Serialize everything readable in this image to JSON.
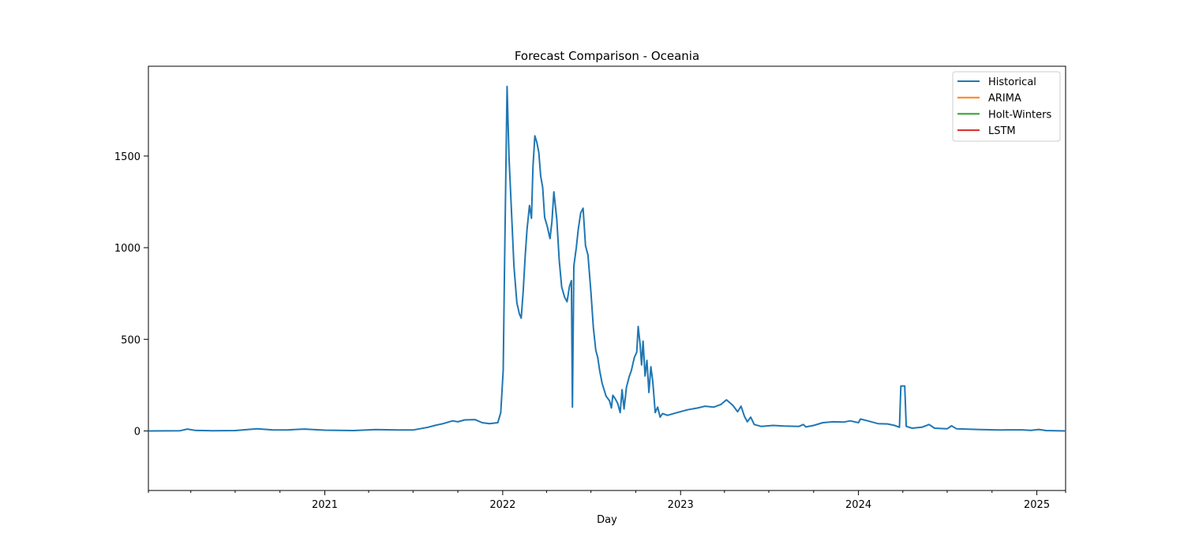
{
  "chart_data": {
    "type": "line",
    "title": "Forecast Comparison - Oceania",
    "xlabel": "Day",
    "ylabel": "",
    "xlim": [
      "2020-01-05",
      "2025-03-01"
    ],
    "ylim": [
      -325,
      1990
    ],
    "x_ticks": [
      {
        "date": "2021-01-01",
        "label": "2021"
      },
      {
        "date": "2022-01-01",
        "label": "2022"
      },
      {
        "date": "2023-01-01",
        "label": "2023"
      },
      {
        "date": "2024-01-01",
        "label": "2024"
      },
      {
        "date": "2025-01-01",
        "label": "2025"
      }
    ],
    "x_minor_ticks": [
      "2020-04-01",
      "2020-07-01",
      "2020-10-01",
      "2021-04-01",
      "2021-07-01",
      "2021-10-01",
      "2022-04-01",
      "2022-07-01",
      "2022-10-01",
      "2023-04-01",
      "2023-07-01",
      "2023-10-01",
      "2024-04-01",
      "2024-07-01",
      "2024-10-01"
    ],
    "y_ticks": [
      0,
      500,
      1000,
      1500
    ],
    "grid": false,
    "legend_position": "upper-right",
    "series": [
      {
        "name": "Historical",
        "color": "#1f77b4",
        "points": [
          [
            "2020-01-05",
            0
          ],
          [
            "2020-03-10",
            1
          ],
          [
            "2020-03-25",
            10
          ],
          [
            "2020-04-10",
            3
          ],
          [
            "2020-05-15",
            1
          ],
          [
            "2020-07-01",
            2
          ],
          [
            "2020-08-15",
            12
          ],
          [
            "2020-09-15",
            6
          ],
          [
            "2020-10-15",
            5
          ],
          [
            "2020-11-20",
            10
          ],
          [
            "2021-01-01",
            4
          ],
          [
            "2021-03-01",
            2
          ],
          [
            "2021-04-15",
            7
          ],
          [
            "2021-06-01",
            5
          ],
          [
            "2021-07-01",
            5
          ],
          [
            "2021-08-01",
            20
          ],
          [
            "2021-08-15",
            30
          ],
          [
            "2021-09-01",
            40
          ],
          [
            "2021-09-20",
            55
          ],
          [
            "2021-10-01",
            50
          ],
          [
            "2021-10-15",
            60
          ],
          [
            "2021-11-05",
            62
          ],
          [
            "2021-11-20",
            45
          ],
          [
            "2021-12-05",
            40
          ],
          [
            "2021-12-22",
            45
          ],
          [
            "2021-12-28",
            100
          ],
          [
            "2022-01-02",
            330
          ],
          [
            "2022-01-05",
            930
          ],
          [
            "2022-01-10",
            1880
          ],
          [
            "2022-01-14",
            1490
          ],
          [
            "2022-01-20",
            1140
          ],
          [
            "2022-01-24",
            900
          ],
          [
            "2022-01-30",
            700
          ],
          [
            "2022-02-04",
            640
          ],
          [
            "2022-02-08",
            615
          ],
          [
            "2022-02-12",
            760
          ],
          [
            "2022-02-16",
            950
          ],
          [
            "2022-02-20",
            1100
          ],
          [
            "2022-02-25",
            1230
          ],
          [
            "2022-03-01",
            1160
          ],
          [
            "2022-03-04",
            1440
          ],
          [
            "2022-03-08",
            1610
          ],
          [
            "2022-03-12",
            1575
          ],
          [
            "2022-03-16",
            1520
          ],
          [
            "2022-03-20",
            1390
          ],
          [
            "2022-03-24",
            1330
          ],
          [
            "2022-03-28",
            1165
          ],
          [
            "2022-04-02",
            1120
          ],
          [
            "2022-04-08",
            1050
          ],
          [
            "2022-04-12",
            1140
          ],
          [
            "2022-04-16",
            1305
          ],
          [
            "2022-04-22",
            1155
          ],
          [
            "2022-04-27",
            930
          ],
          [
            "2022-05-02",
            785
          ],
          [
            "2022-05-08",
            730
          ],
          [
            "2022-05-13",
            705
          ],
          [
            "2022-05-18",
            790
          ],
          [
            "2022-05-22",
            820
          ],
          [
            "2022-05-24",
            130
          ],
          [
            "2022-05-27",
            900
          ],
          [
            "2022-06-01",
            1000
          ],
          [
            "2022-06-05",
            1100
          ],
          [
            "2022-06-10",
            1190
          ],
          [
            "2022-06-15",
            1215
          ],
          [
            "2022-06-20",
            1010
          ],
          [
            "2022-06-25",
            960
          ],
          [
            "2022-07-01",
            760
          ],
          [
            "2022-07-06",
            565
          ],
          [
            "2022-07-11",
            440
          ],
          [
            "2022-07-15",
            400
          ],
          [
            "2022-07-19",
            330
          ],
          [
            "2022-07-24",
            260
          ],
          [
            "2022-08-01",
            190
          ],
          [
            "2022-08-08",
            165
          ],
          [
            "2022-08-12",
            125
          ],
          [
            "2022-08-15",
            195
          ],
          [
            "2022-08-20",
            175
          ],
          [
            "2022-08-25",
            150
          ],
          [
            "2022-08-30",
            100
          ],
          [
            "2022-09-03",
            225
          ],
          [
            "2022-09-07",
            120
          ],
          [
            "2022-09-12",
            240
          ],
          [
            "2022-09-18",
            300
          ],
          [
            "2022-09-22",
            330
          ],
          [
            "2022-09-28",
            400
          ],
          [
            "2022-10-03",
            430
          ],
          [
            "2022-10-06",
            570
          ],
          [
            "2022-10-10",
            470
          ],
          [
            "2022-10-13",
            360
          ],
          [
            "2022-10-16",
            490
          ],
          [
            "2022-10-20",
            300
          ],
          [
            "2022-10-24",
            385
          ],
          [
            "2022-10-28",
            210
          ],
          [
            "2022-11-01",
            350
          ],
          [
            "2022-11-05",
            270
          ],
          [
            "2022-11-10",
            100
          ],
          [
            "2022-11-15",
            130
          ],
          [
            "2022-11-20",
            75
          ],
          [
            "2022-11-25",
            95
          ],
          [
            "2022-12-05",
            85
          ],
          [
            "2022-12-25",
            100
          ],
          [
            "2023-01-15",
            115
          ],
          [
            "2023-02-05",
            125
          ],
          [
            "2023-02-20",
            135
          ],
          [
            "2023-03-10",
            130
          ],
          [
            "2023-03-25",
            145
          ],
          [
            "2023-04-05",
            170
          ],
          [
            "2023-04-18",
            140
          ],
          [
            "2023-04-28",
            105
          ],
          [
            "2023-05-05",
            135
          ],
          [
            "2023-05-12",
            80
          ],
          [
            "2023-05-18",
            50
          ],
          [
            "2023-05-25",
            75
          ],
          [
            "2023-06-01",
            35
          ],
          [
            "2023-06-15",
            25
          ],
          [
            "2023-07-10",
            30
          ],
          [
            "2023-08-01",
            27
          ],
          [
            "2023-09-01",
            25
          ],
          [
            "2023-09-10",
            35
          ],
          [
            "2023-09-15",
            22
          ],
          [
            "2023-10-01",
            30
          ],
          [
            "2023-10-20",
            45
          ],
          [
            "2023-11-10",
            50
          ],
          [
            "2023-12-01",
            48
          ],
          [
            "2023-12-15",
            55
          ],
          [
            "2024-01-01",
            45
          ],
          [
            "2024-01-05",
            65
          ],
          [
            "2024-01-20",
            55
          ],
          [
            "2024-02-10",
            40
          ],
          [
            "2024-03-01",
            38
          ],
          [
            "2024-03-15",
            30
          ],
          [
            "2024-03-25",
            20
          ],
          [
            "2024-03-28",
            245
          ],
          [
            "2024-04-05",
            245
          ],
          [
            "2024-04-08",
            25
          ],
          [
            "2024-04-20",
            15
          ],
          [
            "2024-05-10",
            20
          ],
          [
            "2024-05-25",
            35
          ],
          [
            "2024-06-05",
            15
          ],
          [
            "2024-07-01",
            12
          ],
          [
            "2024-07-10",
            28
          ],
          [
            "2024-07-20",
            12
          ],
          [
            "2024-09-01",
            8
          ],
          [
            "2024-10-15",
            5
          ],
          [
            "2024-11-01",
            6
          ],
          [
            "2024-12-01",
            6
          ],
          [
            "2024-12-20",
            3
          ],
          [
            "2025-01-05",
            8
          ],
          [
            "2025-01-20",
            2
          ],
          [
            "2025-03-01",
            0
          ]
        ]
      },
      {
        "name": "ARIMA",
        "color": "#ff7f0e",
        "points": []
      },
      {
        "name": "Holt-Winters",
        "color": "#2ca02c",
        "points": []
      },
      {
        "name": "LSTM",
        "color": "#d62728",
        "points": []
      }
    ]
  }
}
